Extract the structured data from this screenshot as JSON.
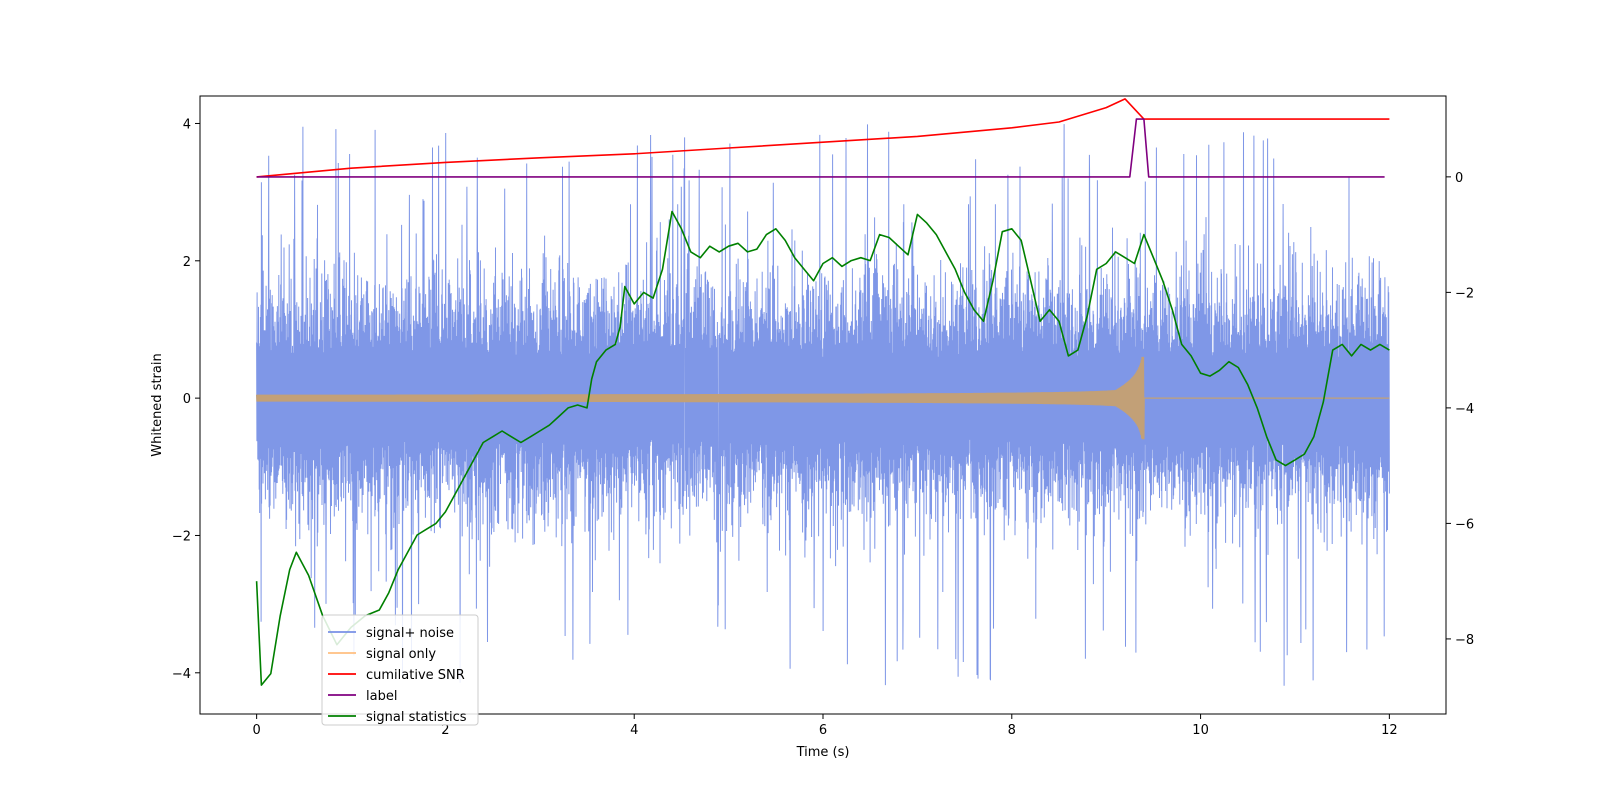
{
  "chart_data": {
    "type": "line",
    "xlabel": "Time (s)",
    "ylabel": "Whitened strain",
    "xlim": [
      -0.6,
      12.6
    ],
    "ylim": [
      -4.6,
      4.4
    ],
    "y2lim": [
      -9.3,
      1.4
    ],
    "xticks": [
      0,
      2,
      4,
      6,
      8,
      10,
      12
    ],
    "xtick_labels": [
      "0",
      "2",
      "4",
      "6",
      "8",
      "10",
      "12"
    ],
    "yticks": [
      -4,
      -2,
      0,
      2,
      4
    ],
    "ytick_labels": [
      "−4",
      "−2",
      "0",
      "2",
      "4"
    ],
    "y2ticks": [
      -8,
      -6,
      -4,
      -2,
      0
    ],
    "y2tick_labels": [
      "−8",
      "−6",
      "−4",
      "−2",
      "0"
    ],
    "legend_position": "lower-left",
    "series": [
      {
        "name": "signal+ noise",
        "axis": "left",
        "color": "#7891e6",
        "style": "noise",
        "x_range": [
          0,
          12
        ],
        "core_amplitude": 1.3,
        "spike_max": 4.0,
        "spike_min": -4.2
      },
      {
        "name": "signal only",
        "axis": "left",
        "color": "#c2a077",
        "legend_color": "#ffbf80",
        "style": "chirp",
        "x_range": [
          0,
          12
        ],
        "merger_time": 9.4,
        "amplitude_at_start": 0.05,
        "amplitude_at_merger": 0.6
      },
      {
        "name": "cumilative SNR",
        "axis": "right",
        "color": "#ff0000",
        "x": [
          0,
          1,
          2,
          3,
          4,
          5,
          6,
          7,
          8,
          8.5,
          9,
          9.2,
          9.4,
          10,
          11,
          12
        ],
        "values": [
          0,
          0.15,
          0.25,
          0.33,
          0.4,
          0.5,
          0.6,
          0.7,
          0.85,
          0.95,
          1.2,
          1.35,
          1.0,
          1.0,
          1.0,
          1.0
        ]
      },
      {
        "name": "label",
        "axis": "right",
        "color": "#800080",
        "x": [
          0,
          9.25,
          9.32,
          9.4,
          9.45,
          11.95
        ],
        "values": [
          0,
          0,
          1,
          1,
          0,
          0
        ]
      },
      {
        "name": "signal statistics",
        "axis": "right",
        "color": "#008000",
        "x": [
          0,
          0.05,
          0.15,
          0.25,
          0.35,
          0.42,
          0.55,
          0.7,
          0.85,
          1.0,
          1.15,
          1.3,
          1.4,
          1.5,
          1.6,
          1.7,
          1.8,
          1.9,
          2.0,
          2.1,
          2.2,
          2.3,
          2.4,
          2.5,
          2.6,
          2.7,
          2.8,
          2.9,
          3.0,
          3.1,
          3.2,
          3.3,
          3.4,
          3.5,
          3.55,
          3.6,
          3.7,
          3.8,
          3.85,
          3.9,
          4.0,
          4.1,
          4.2,
          4.3,
          4.4,
          4.5,
          4.6,
          4.7,
          4.8,
          4.9,
          5.0,
          5.1,
          5.2,
          5.3,
          5.4,
          5.5,
          5.6,
          5.7,
          5.8,
          5.9,
          6.0,
          6.1,
          6.2,
          6.3,
          6.4,
          6.5,
          6.6,
          6.7,
          6.8,
          6.9,
          7.0,
          7.1,
          7.2,
          7.3,
          7.4,
          7.5,
          7.6,
          7.7,
          7.8,
          7.9,
          8.0,
          8.1,
          8.2,
          8.3,
          8.4,
          8.5,
          8.6,
          8.7,
          8.8,
          8.9,
          9.0,
          9.1,
          9.2,
          9.3,
          9.4,
          9.5,
          9.6,
          9.7,
          9.8,
          9.9,
          10.0,
          10.1,
          10.2,
          10.3,
          10.4,
          10.5,
          10.6,
          10.7,
          10.8,
          10.9,
          11.0,
          11.1,
          11.2,
          11.3,
          11.4,
          11.5,
          11.6,
          11.7,
          11.8,
          11.9,
          12.0
        ],
        "values": [
          -7.0,
          -8.8,
          -8.6,
          -7.6,
          -6.8,
          -6.5,
          -6.9,
          -7.6,
          -8.1,
          -7.8,
          -7.6,
          -7.5,
          -7.2,
          -6.8,
          -6.5,
          -6.2,
          -6.1,
          -6.0,
          -5.8,
          -5.5,
          -5.2,
          -4.9,
          -4.6,
          -4.5,
          -4.4,
          -4.5,
          -4.6,
          -4.5,
          -4.4,
          -4.3,
          -4.15,
          -4.0,
          -3.95,
          -4.0,
          -3.5,
          -3.2,
          -3.0,
          -2.9,
          -2.6,
          -1.9,
          -2.2,
          -2.0,
          -2.1,
          -1.6,
          -0.6,
          -0.9,
          -1.3,
          -1.4,
          -1.2,
          -1.3,
          -1.2,
          -1.15,
          -1.3,
          -1.25,
          -1.0,
          -0.9,
          -1.1,
          -1.4,
          -1.6,
          -1.8,
          -1.5,
          -1.4,
          -1.55,
          -1.45,
          -1.4,
          -1.45,
          -1.0,
          -1.05,
          -1.2,
          -1.35,
          -0.65,
          -0.8,
          -1.0,
          -1.3,
          -1.6,
          -2.0,
          -2.3,
          -2.5,
          -1.8,
          -0.95,
          -0.9,
          -1.1,
          -1.8,
          -2.5,
          -2.3,
          -2.5,
          -3.1,
          -3.0,
          -2.4,
          -1.6,
          -1.5,
          -1.3,
          -1.4,
          -1.5,
          -1.0,
          -1.4,
          -1.8,
          -2.3,
          -2.9,
          -3.1,
          -3.4,
          -3.45,
          -3.35,
          -3.2,
          -3.3,
          -3.6,
          -4.0,
          -4.5,
          -4.9,
          -5.0,
          -4.9,
          -4.8,
          -4.5,
          -3.9,
          -3.0,
          -2.9,
          -3.1,
          -2.9,
          -3.0,
          -2.9,
          -3.0
        ]
      }
    ]
  }
}
